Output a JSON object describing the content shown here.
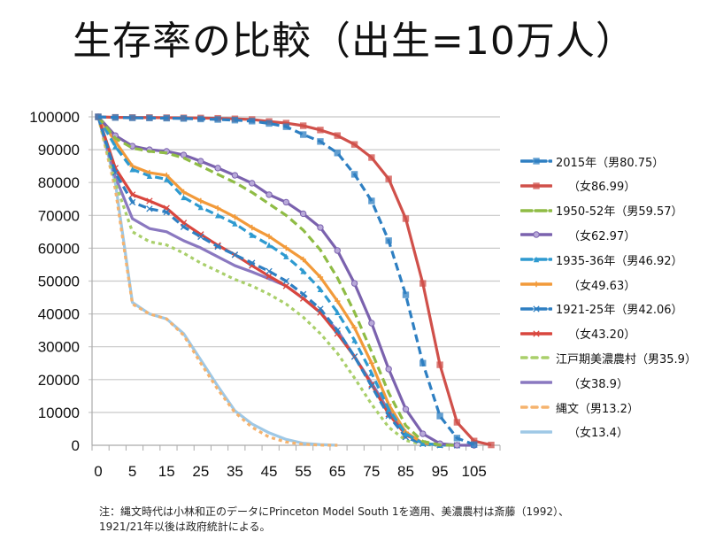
{
  "title": "生存率の比較（出生=10万人）",
  "note": {
    "line1": "注：縄文時代は小林和正のデータにPrinceton Model South 1を適用、美濃農村は斎藤（1992）、",
    "line2": "1921/21年以後は政府統計による。"
  },
  "chart_data": {
    "type": "line",
    "title": "生存率の比較（出生=10万人）",
    "xlabel": "",
    "ylabel": "",
    "ylim": [
      0,
      100000
    ],
    "yticks": [
      0,
      10000,
      20000,
      30000,
      40000,
      50000,
      60000,
      70000,
      80000,
      90000,
      100000
    ],
    "categories": [
      0,
      1,
      5,
      10,
      15,
      20,
      25,
      30,
      35,
      40,
      45,
      50,
      55,
      60,
      65,
      70,
      75,
      80,
      85,
      90,
      95,
      100,
      105,
      110
    ],
    "xtick_labels": [
      "0",
      "5",
      "15",
      "25",
      "35",
      "45",
      "55",
      "65",
      "75",
      "85",
      "95",
      "105"
    ],
    "grid": "horizontal",
    "legend_position": "right",
    "series": [
      {
        "name": "2015年（男80.75）",
        "color": "#2e7fc2",
        "dash": "long",
        "marker": "square",
        "values": [
          100000,
          99800,
          99700,
          99650,
          99600,
          99500,
          99350,
          99200,
          99000,
          98700,
          98000,
          97000,
          94600,
          92500,
          89000,
          82500,
          74400,
          62300,
          45800,
          25000,
          8900,
          2200,
          200,
          null
        ]
      },
      {
        "name": "（女86.99）",
        "color": "#d0504a",
        "dash": "solid",
        "marker": "square",
        "values": [
          100000,
          99850,
          99800,
          99800,
          99750,
          99700,
          99650,
          99550,
          99400,
          99200,
          98600,
          98100,
          97300,
          96000,
          94300,
          91600,
          87600,
          81100,
          69000,
          49300,
          24500,
          7000,
          1300,
          100
        ]
      },
      {
        "name": "1950-52年（男59.57）",
        "color": "#8fbc45",
        "dash": "long",
        "marker": "none",
        "values": [
          100000,
          93500,
          90500,
          89500,
          89000,
          87500,
          85000,
          82500,
          80000,
          77000,
          73500,
          70000,
          65500,
          59500,
          51000,
          40500,
          28500,
          16000,
          6000,
          1200,
          100,
          0,
          null,
          null
        ]
      },
      {
        "name": "（女62.97）",
        "color": "#7b62ae",
        "dash": "solid",
        "marker": "circle",
        "values": [
          100000,
          94300,
          91100,
          90000,
          89500,
          88400,
          86500,
          84400,
          82200,
          79800,
          76300,
          74000,
          70500,
          66300,
          59300,
          49300,
          37200,
          23200,
          11000,
          3500,
          500,
          30,
          0,
          null
        ]
      },
      {
        "name": "1935-36年（男46.92）",
        "color": "#2e9ad0",
        "dash": "long",
        "marker": "triangle",
        "values": [
          100000,
          91000,
          84000,
          82000,
          81000,
          75500,
          72500,
          70000,
          67500,
          64000,
          61000,
          57500,
          53000,
          47500,
          40500,
          32000,
          22000,
          11000,
          3500,
          600,
          50,
          0,
          null,
          null
        ]
      },
      {
        "name": "（女49.63）",
        "color": "#f29a3a",
        "dash": "solid",
        "marker": "plus",
        "values": [
          100000,
          92500,
          85000,
          83000,
          82200,
          77100,
          74400,
          72200,
          69500,
          66300,
          63600,
          60100,
          56600,
          51200,
          43900,
          35800,
          25000,
          12400,
          4000,
          700,
          50,
          0,
          null,
          null
        ]
      },
      {
        "name": "1921-25年（男42.06）",
        "color": "#2e7fc2",
        "dash": "long",
        "marker": "x",
        "values": [
          100000,
          83000,
          74000,
          72000,
          71000,
          66500,
          63500,
          60500,
          58000,
          55500,
          53000,
          50000,
          46000,
          41500,
          35000,
          27000,
          18000,
          9000,
          2500,
          400,
          30,
          0,
          null,
          null
        ]
      },
      {
        "name": "（女43.20）",
        "color": "#d9463e",
        "dash": "solid",
        "marker": "x",
        "values": [
          100000,
          84400,
          76300,
          74400,
          72200,
          67700,
          64200,
          60900,
          58000,
          54700,
          51500,
          48500,
          44700,
          40400,
          34000,
          27000,
          18500,
          9500,
          3200,
          600,
          50,
          0,
          null,
          null
        ]
      },
      {
        "name": "江戸期美濃農村（男35.9）",
        "color": "#a9cf6a",
        "dash": "short",
        "marker": "none",
        "values": [
          100000,
          80000,
          65000,
          62000,
          61000,
          58500,
          55500,
          53000,
          50500,
          48500,
          46000,
          43000,
          39000,
          34000,
          28000,
          20500,
          12500,
          5500,
          1500,
          200,
          0,
          null,
          null,
          null
        ]
      },
      {
        "name": "（女38.9）",
        "color": "#8a78c0",
        "dash": "solid",
        "marker": "none",
        "values": [
          100000,
          81700,
          69000,
          66000,
          65000,
          62300,
          60100,
          57400,
          54700,
          52800,
          50700,
          48500,
          44700,
          40400,
          35000,
          27000,
          19000,
          10500,
          3500,
          600,
          50,
          0,
          null,
          null
        ]
      },
      {
        "name": "縄文（男13.2）",
        "color": "#f5b36e",
        "dash": "short",
        "marker": "none",
        "values": [
          100000,
          78000,
          43000,
          40000,
          38500,
          33500,
          25000,
          17000,
          10000,
          5500,
          2500,
          1000,
          300,
          50,
          0,
          null,
          null,
          null,
          null,
          null,
          null,
          null,
          null,
          null
        ]
      },
      {
        "name": "（女13.4）",
        "color": "#9ec8e6",
        "dash": "solid",
        "marker": "none",
        "values": [
          100000,
          80000,
          43500,
          40000,
          38500,
          34000,
          26000,
          18000,
          10500,
          6500,
          3800,
          1800,
          600,
          200,
          20,
          null,
          null,
          null,
          null,
          null,
          null,
          null,
          null,
          null
        ]
      }
    ]
  }
}
